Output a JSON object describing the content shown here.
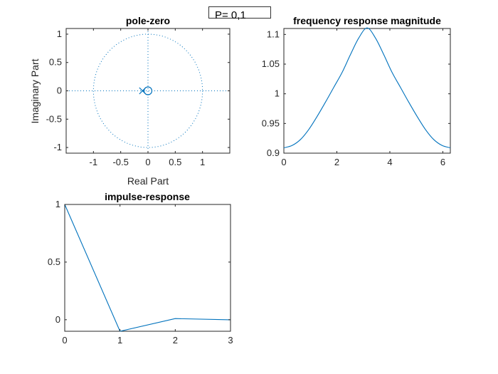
{
  "param_box": {
    "text": "P= 0,1"
  },
  "colors": {
    "line": "#0072BD",
    "axis": "#262626"
  },
  "chart_data": [
    {
      "type": "scatter",
      "title": "pole-zero",
      "xlabel": "Real Part",
      "ylabel": "Imaginary Part",
      "xlim": [
        -1.5,
        1.5
      ],
      "ylim": [
        -1.1,
        1.1
      ],
      "xticks": [
        -1,
        -0.5,
        0,
        0.5,
        1
      ],
      "xtick_labels": [
        "-1",
        "-0.5",
        "0",
        "0.5",
        "1"
      ],
      "yticks": [
        -1,
        -0.5,
        0,
        0.5,
        1
      ],
      "ytick_labels": [
        "-1",
        "-0.5",
        "0",
        "0.5",
        "1"
      ],
      "unit_circle": true,
      "poles": [
        {
          "re": -0.1,
          "im": 0
        }
      ],
      "zeros": [
        {
          "re": 0,
          "im": 0
        }
      ]
    },
    {
      "type": "line",
      "title": "frequency response magnitude",
      "xlabel": "",
      "ylabel": "",
      "xlim": [
        0,
        6.283
      ],
      "ylim": [
        0.9,
        1.11
      ],
      "xticks": [
        0,
        2,
        4,
        6
      ],
      "xtick_labels": [
        "0",
        "2",
        "4",
        "6"
      ],
      "yticks": [
        0.9,
        0.95,
        1,
        1.05,
        1.1
      ],
      "ytick_labels": [
        "0.9",
        "0.95",
        "1",
        "1.05",
        "1.1"
      ],
      "x": [
        0,
        0.314,
        0.628,
        0.942,
        1.257,
        1.571,
        1.885,
        2.199,
        2.513,
        2.827,
        3.142,
        3.456,
        3.77,
        4.084,
        4.398,
        4.712,
        5.027,
        5.341,
        5.655,
        5.969,
        6.283
      ],
      "y": [
        0.909,
        0.913,
        0.923,
        0.94,
        0.962,
        0.986,
        1.011,
        1.036,
        1.066,
        1.094,
        1.111,
        1.094,
        1.066,
        1.036,
        1.011,
        0.986,
        0.962,
        0.94,
        0.923,
        0.913,
        0.909
      ]
    },
    {
      "type": "line",
      "title": "impulse-response",
      "xlabel": "",
      "ylabel": "",
      "xlim": [
        0,
        3
      ],
      "ylim": [
        -0.1,
        1
      ],
      "xticks": [
        0,
        1,
        2,
        3
      ],
      "xtick_labels": [
        "0",
        "1",
        "2",
        "3"
      ],
      "yticks": [
        0,
        0.5,
        1
      ],
      "ytick_labels": [
        "0",
        "0.5",
        "1"
      ],
      "x": [
        0,
        1,
        2,
        3
      ],
      "y": [
        1,
        -0.1,
        0.01,
        -0.001
      ]
    }
  ]
}
